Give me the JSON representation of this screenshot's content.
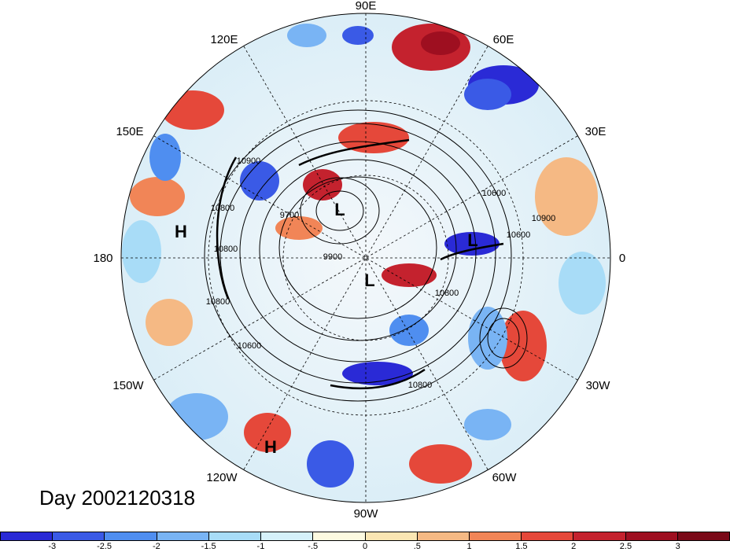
{
  "map": {
    "projection": "north polar stereographic",
    "longitude_labels": [
      "90E",
      "60E",
      "30E",
      "0",
      "30W",
      "60W",
      "90W",
      "120W",
      "150W",
      "180",
      "150E",
      "120E"
    ],
    "pressure_markers": [
      "L",
      "L",
      "L",
      "H",
      "H"
    ],
    "contour_labels": [
      "10900",
      "10800",
      "10600",
      "10800",
      "9700",
      "9900",
      "10600",
      "10900",
      "10600",
      "10800",
      "10800",
      "10800"
    ]
  },
  "day_label": "Day 2002120318",
  "colorbar": {
    "labels": [
      "-3",
      "-2.5",
      "-2",
      "-1.5",
      "-1",
      "-.5",
      "0",
      ".5",
      "1",
      "1.5",
      "2",
      "2.5",
      "3"
    ],
    "colors": [
      "#2a2ad6",
      "#3a5ae6",
      "#4f8ef0",
      "#79b4f4",
      "#a8dcf7",
      "#d6f1fa",
      "#fdfae0",
      "#fbe6b3",
      "#f5b984",
      "#f18557",
      "#e5483a",
      "#c4222e",
      "#9e0f20",
      "#7a0a18"
    ]
  }
}
